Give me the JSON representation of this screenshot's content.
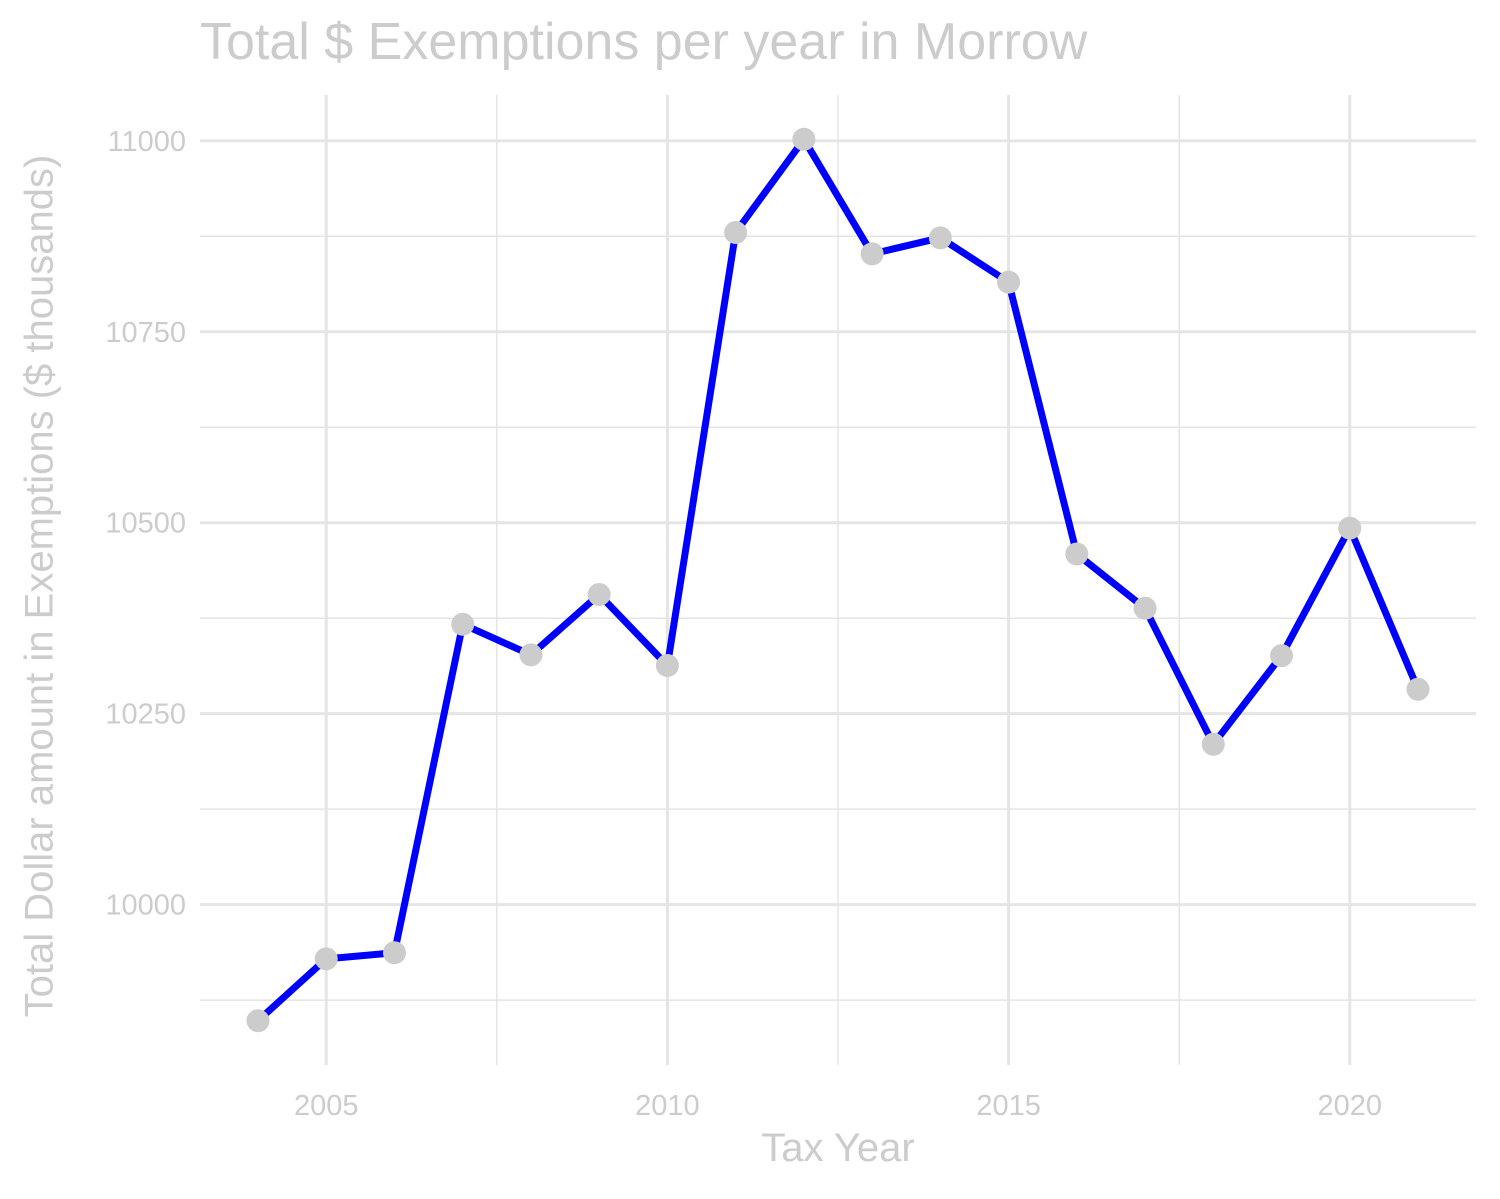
{
  "chart_data": {
    "type": "line",
    "title": "Total $ Exemptions per year in Morrow",
    "xlabel": "Tax Year",
    "ylabel": "Total Dollar amount in Exemptions ($ thousands)",
    "x": [
      2004,
      2005,
      2006,
      2007,
      2008,
      2009,
      2010,
      2011,
      2012,
      2013,
      2014,
      2015,
      2016,
      2017,
      2018,
      2019,
      2020,
      2021
    ],
    "series": [
      {
        "values": [
          9848,
          9929,
          9937,
          10367,
          10327,
          10406,
          10313,
          10880,
          11002,
          10852,
          10873,
          10815,
          10459,
          10388,
          10210,
          10326,
          10493,
          10282
        ]
      }
    ],
    "xlim": [
      2003.15,
      2021.85
    ],
    "ylim": [
      9790,
      11060
    ],
    "x_ticks": [
      "2005",
      "2010",
      "2015",
      "2020"
    ],
    "y_ticks": [
      "10000",
      "10250",
      "10500",
      "10750",
      "11000"
    ],
    "line_color": "#0000ff",
    "point_color": "#cccccc",
    "grid_color": "#e5e5e5",
    "text_color": "#cccccc",
    "grid": true
  }
}
